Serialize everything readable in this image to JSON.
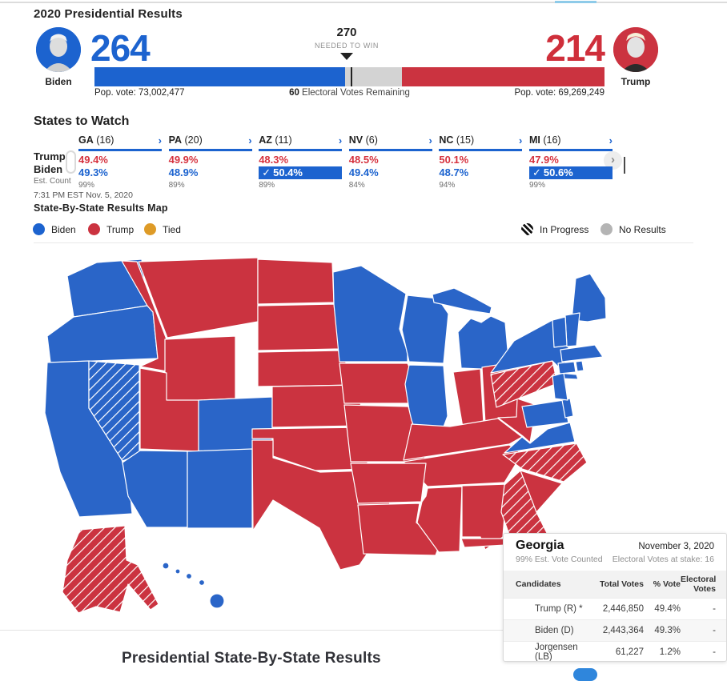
{
  "page": {
    "title": "2020 Presidential Results",
    "bottom_heading": "Presidential State-By-State Results"
  },
  "icons": {
    "chevron_right": "›",
    "check": "✓"
  },
  "scoreboard": {
    "needed_to_win": {
      "value": "270",
      "label": "NEEDED TO WIN"
    },
    "remaining_prefix": "60",
    "remaining_label": " Electoral Votes Remaining",
    "biden": {
      "name": "Biden",
      "electoral_votes": "264",
      "pop_vote": "Pop. vote: 73,002,477",
      "color": "#1c63cf"
    },
    "trump": {
      "name": "Trump",
      "electoral_votes": "214",
      "pop_vote": "Pop. vote: 69,269,249",
      "color": "#cf2f3b"
    },
    "bar": {
      "biden_pct": 49.07,
      "remaining_pct": 11.15,
      "trump_pct": 39.78,
      "marker_pct": 50.19,
      "remaining_color": "#d3d3d3"
    }
  },
  "states_to_watch": {
    "heading": "States to Watch",
    "row_labels": {
      "trump": "Trump",
      "biden": "Biden",
      "est": "Est. Count"
    },
    "timestamp": "7:31 PM EST Nov. 5, 2020",
    "states": [
      {
        "abbr": "GA",
        "ev": " (16)",
        "trump": "49.4%",
        "biden": "49.3%",
        "est": "99%",
        "winner": null
      },
      {
        "abbr": "PA",
        "ev": " (20)",
        "trump": "49.9%",
        "biden": "48.9%",
        "est": "89%",
        "winner": null
      },
      {
        "abbr": "AZ",
        "ev": " (11)",
        "trump": "48.3%",
        "biden": "50.4%",
        "est": "89%",
        "winner": "biden"
      },
      {
        "abbr": "NV",
        "ev": " (6)",
        "trump": "48.5%",
        "biden": "49.4%",
        "est": "84%",
        "winner": null
      },
      {
        "abbr": "NC",
        "ev": " (15)",
        "trump": "50.1%",
        "biden": "48.7%",
        "est": "94%",
        "winner": null
      },
      {
        "abbr": "MI",
        "ev": " (16)",
        "trump": "47.9%",
        "biden": "50.6%",
        "est": "99%",
        "winner": "biden"
      }
    ]
  },
  "map_section": {
    "heading": "State-By-State Results Map",
    "legend": [
      {
        "label": "Biden",
        "color": "#1c63cf"
      },
      {
        "label": "Trump",
        "color": "#cb3340"
      },
      {
        "label": "Tied",
        "color": "#de9b27"
      }
    ],
    "legend_status": [
      {
        "label": "In Progress",
        "style": "hatched"
      },
      {
        "label": "No Results",
        "color": "#b4b4b4"
      }
    ],
    "states": {
      "WA": "biden",
      "OR": "biden",
      "CA": "biden",
      "NV": "biden_progress",
      "ID": "trump",
      "MT": "trump",
      "WY": "trump",
      "UT": "trump",
      "CO": "biden",
      "AZ": "biden",
      "NM": "biden",
      "ND": "trump",
      "SD": "trump",
      "NE": "trump",
      "KS": "trump",
      "OK": "trump",
      "TX": "trump",
      "MN": "biden",
      "IA": "trump",
      "WI": "biden",
      "MI": "biden",
      "IL": "biden",
      "IN": "trump",
      "OH": "trump",
      "MO": "trump",
      "KY": "trump",
      "TN": "trump",
      "AR": "trump",
      "LA": "trump",
      "MS": "trump",
      "AL": "trump",
      "WV": "trump",
      "PA": "trump_progress",
      "NY": "biden",
      "VA": "biden",
      "NC": "trump_progress",
      "SC": "trump",
      "GA": "trump_progress",
      "FL": "trump",
      "MD": "biden",
      "DE": "biden",
      "NJ": "biden",
      "ME": "biden",
      "NH": "biden",
      "VT": "biden",
      "MA": "biden",
      "CT": "biden",
      "RI": "biden",
      "AK": "trump_progress",
      "HI": "biden"
    }
  },
  "tooltip": {
    "state": "Georgia",
    "date": "November 3, 2020",
    "est_counted": "99% Est. Vote Counted",
    "at_stake": "Electoral Votes at stake: 16",
    "columns": {
      "candidates": "Candidates",
      "total": "Total Votes",
      "pct": "% Vote",
      "ev": "Electoral Votes"
    },
    "rows": [
      {
        "candidate": "Trump (R) *",
        "total": "2,446,850",
        "pct": "49.4%",
        "ev": "-"
      },
      {
        "candidate": "Biden (D)",
        "total": "2,443,364",
        "pct": "49.3%",
        "ev": "-"
      },
      {
        "candidate": "Jorgensen (LB)",
        "total": "61,227",
        "pct": "1.2%",
        "ev": "-"
      }
    ]
  }
}
